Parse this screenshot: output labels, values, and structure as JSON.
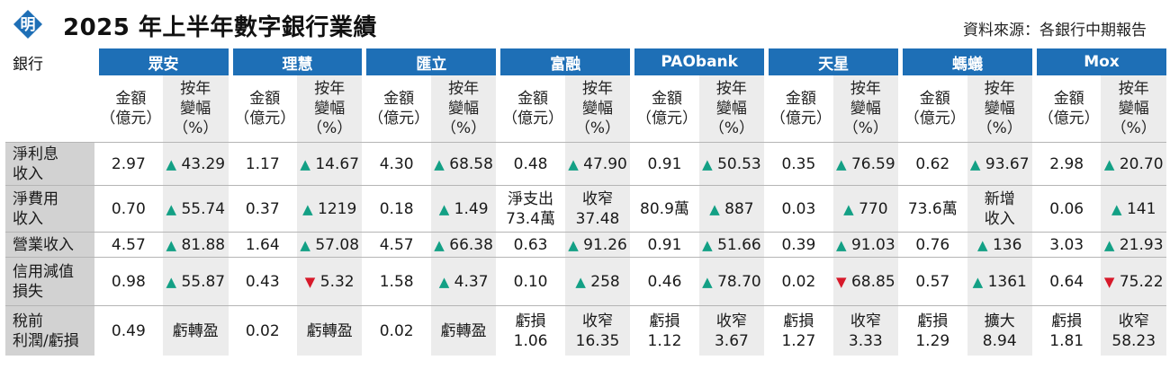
{
  "title": "2025 年上半年數字銀行業績",
  "source": "資料來源：各銀行中期報告",
  "logo": {
    "glyph": "明",
    "icon": "newspaper-logo-icon"
  },
  "colors": {
    "header_blue": "#1e6fb6",
    "up": "#13a085",
    "down": "#d7192a",
    "row_label_bg": "#d2d2d2",
    "alt_col_bg": "#ececec"
  },
  "table": {
    "corner": "銀行",
    "banks": [
      "眾安",
      "理慧",
      "匯立",
      "富融",
      "PAObank",
      "天星",
      "螞蟻",
      "Mox"
    ],
    "sub_amount": [
      "金額",
      "（億元）"
    ],
    "sub_change": [
      "按年",
      "變幅",
      "（%）"
    ],
    "rows": [
      {
        "label": [
          "淨利息",
          "收入"
        ],
        "cells": [
          [
            {
              "t": [
                "2.97"
              ]
            },
            {
              "t": [
                "43.29"
              ],
              "dir": "up"
            }
          ],
          [
            {
              "t": [
                "1.17"
              ]
            },
            {
              "t": [
                "14.67"
              ],
              "dir": "up"
            }
          ],
          [
            {
              "t": [
                "4.30"
              ]
            },
            {
              "t": [
                "68.58"
              ],
              "dir": "up"
            }
          ],
          [
            {
              "t": [
                "0.48"
              ]
            },
            {
              "t": [
                "47.90"
              ],
              "dir": "up"
            }
          ],
          [
            {
              "t": [
                "0.91"
              ]
            },
            {
              "t": [
                "50.53"
              ],
              "dir": "up"
            }
          ],
          [
            {
              "t": [
                "0.35"
              ]
            },
            {
              "t": [
                "76.59"
              ],
              "dir": "up"
            }
          ],
          [
            {
              "t": [
                "0.62"
              ]
            },
            {
              "t": [
                "93.67"
              ],
              "dir": "up"
            }
          ],
          [
            {
              "t": [
                "2.98"
              ]
            },
            {
              "t": [
                "20.70"
              ],
              "dir": "up"
            }
          ]
        ]
      },
      {
        "label": [
          "淨費用",
          "收入"
        ],
        "cells": [
          [
            {
              "t": [
                "0.70"
              ]
            },
            {
              "t": [
                "55.74"
              ],
              "dir": "up"
            }
          ],
          [
            {
              "t": [
                "0.37"
              ]
            },
            {
              "t": [
                "1219"
              ],
              "dir": "up"
            }
          ],
          [
            {
              "t": [
                "0.18"
              ]
            },
            {
              "t": [
                "1.49"
              ],
              "dir": "up"
            }
          ],
          [
            {
              "t": [
                "淨支出",
                "73.4萬"
              ]
            },
            {
              "t": [
                "收窄",
                "37.48"
              ]
            }
          ],
          [
            {
              "t": [
                "80.9萬"
              ]
            },
            {
              "t": [
                "887"
              ],
              "dir": "up"
            }
          ],
          [
            {
              "t": [
                "0.03"
              ]
            },
            {
              "t": [
                "770"
              ],
              "dir": "up"
            }
          ],
          [
            {
              "t": [
                "73.6萬"
              ]
            },
            {
              "t": [
                "新增",
                "收入"
              ]
            }
          ],
          [
            {
              "t": [
                "0.06"
              ]
            },
            {
              "t": [
                "141"
              ],
              "dir": "up"
            }
          ]
        ]
      },
      {
        "label": [
          "營業收入"
        ],
        "cells": [
          [
            {
              "t": [
                "4.57"
              ]
            },
            {
              "t": [
                "81.88"
              ],
              "dir": "up"
            }
          ],
          [
            {
              "t": [
                "1.64"
              ]
            },
            {
              "t": [
                "57.08"
              ],
              "dir": "up"
            }
          ],
          [
            {
              "t": [
                "4.57"
              ]
            },
            {
              "t": [
                "66.38"
              ],
              "dir": "up"
            }
          ],
          [
            {
              "t": [
                "0.63"
              ]
            },
            {
              "t": [
                "91.26"
              ],
              "dir": "up"
            }
          ],
          [
            {
              "t": [
                "0.91"
              ]
            },
            {
              "t": [
                "51.66"
              ],
              "dir": "up"
            }
          ],
          [
            {
              "t": [
                "0.39"
              ]
            },
            {
              "t": [
                "91.03"
              ],
              "dir": "up"
            }
          ],
          [
            {
              "t": [
                "0.76"
              ]
            },
            {
              "t": [
                "136"
              ],
              "dir": "up"
            }
          ],
          [
            {
              "t": [
                "3.03"
              ]
            },
            {
              "t": [
                "21.93"
              ],
              "dir": "up"
            }
          ]
        ]
      },
      {
        "label": [
          "信用減值",
          "損失"
        ],
        "cells": [
          [
            {
              "t": [
                "0.98"
              ]
            },
            {
              "t": [
                "55.87"
              ],
              "dir": "up"
            }
          ],
          [
            {
              "t": [
                "0.43"
              ]
            },
            {
              "t": [
                "5.32"
              ],
              "dir": "down"
            }
          ],
          [
            {
              "t": [
                "1.58"
              ]
            },
            {
              "t": [
                "4.37"
              ],
              "dir": "up"
            }
          ],
          [
            {
              "t": [
                "0.10"
              ]
            },
            {
              "t": [
                "258"
              ],
              "dir": "up"
            }
          ],
          [
            {
              "t": [
                "0.46"
              ]
            },
            {
              "t": [
                "78.70"
              ],
              "dir": "up"
            }
          ],
          [
            {
              "t": [
                "0.02"
              ]
            },
            {
              "t": [
                "68.85"
              ],
              "dir": "down"
            }
          ],
          [
            {
              "t": [
                "0.57"
              ]
            },
            {
              "t": [
                "1361"
              ],
              "dir": "up"
            }
          ],
          [
            {
              "t": [
                "0.64"
              ]
            },
            {
              "t": [
                "75.22"
              ],
              "dir": "down"
            }
          ]
        ]
      },
      {
        "label": [
          "稅前",
          "利潤/虧損"
        ],
        "cells": [
          [
            {
              "t": [
                "0.49"
              ]
            },
            {
              "t": [
                "虧轉盈"
              ]
            }
          ],
          [
            {
              "t": [
                "0.02"
              ]
            },
            {
              "t": [
                "虧轉盈"
              ]
            }
          ],
          [
            {
              "t": [
                "0.02"
              ]
            },
            {
              "t": [
                "虧轉盈"
              ]
            }
          ],
          [
            {
              "t": [
                "虧損",
                "1.06"
              ]
            },
            {
              "t": [
                "收窄",
                "16.35"
              ]
            }
          ],
          [
            {
              "t": [
                "虧損",
                "1.12"
              ]
            },
            {
              "t": [
                "收窄",
                "3.67"
              ]
            }
          ],
          [
            {
              "t": [
                "虧損",
                "1.27"
              ]
            },
            {
              "t": [
                "收窄",
                "3.33"
              ]
            }
          ],
          [
            {
              "t": [
                "虧損",
                "1.29"
              ]
            },
            {
              "t": [
                "擴大",
                "8.94"
              ]
            }
          ],
          [
            {
              "t": [
                "虧損",
                "1.81"
              ]
            },
            {
              "t": [
                "收窄",
                "58.23"
              ]
            }
          ]
        ]
      }
    ]
  }
}
